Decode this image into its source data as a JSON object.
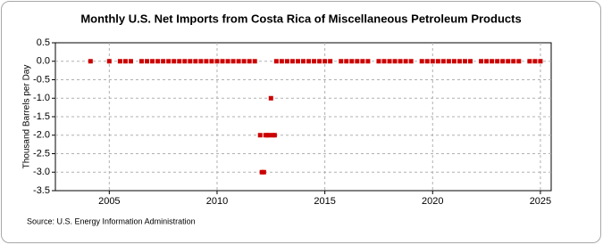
{
  "chart_data": {
    "type": "scatter",
    "title": "Monthly U.S. Net Imports from Costa Rica of Miscellaneous Petroleum Products",
    "y_label": "Thousand Barrels per Day",
    "source": "Source: U.S. Energy Information Administration",
    "color": "#cc0000",
    "grid": true,
    "xlim": [
      2002.5,
      2025.5
    ],
    "xticks": [
      2005,
      2010,
      2015,
      2020,
      2025
    ],
    "ylim": [
      -3.5,
      0.5
    ],
    "yticks": [
      0.5,
      {
        "value": 0,
        "label": "0.0"
      },
      -0.5,
      {
        "value": -1,
        "label": "-1.0"
      },
      -1.5,
      {
        "value": -2,
        "label": "-2.0"
      },
      -2.5,
      {
        "value": -3,
        "label": "-3.0"
      },
      -3.5
    ],
    "x": [
      2004.13,
      2005.0,
      2005.5,
      2005.75,
      2006.0,
      2006.5,
      2006.75,
      2007.0,
      2007.25,
      2007.5,
      2007.75,
      2008.0,
      2008.25,
      2008.5,
      2008.75,
      2009.0,
      2009.25,
      2009.5,
      2009.75,
      2010.0,
      2010.25,
      2010.5,
      2010.75,
      2011.0,
      2011.25,
      2011.5,
      2011.75,
      2012.0,
      2012.08,
      2012.17,
      2012.25,
      2012.33,
      2012.42,
      2012.5,
      2012.58,
      2012.67,
      2012.75,
      2013.0,
      2013.25,
      2013.5,
      2013.75,
      2014.0,
      2014.25,
      2014.5,
      2014.75,
      2015.0,
      2015.25,
      2015.75,
      2016.0,
      2016.25,
      2016.5,
      2016.75,
      2017.0,
      2017.5,
      2017.75,
      2018.0,
      2018.25,
      2018.5,
      2018.75,
      2019.0,
      2019.5,
      2019.75,
      2020.0,
      2020.25,
      2020.5,
      2020.75,
      2021.0,
      2021.25,
      2021.5,
      2021.75,
      2022.25,
      2022.5,
      2022.75,
      2023.0,
      2023.25,
      2023.5,
      2023.75,
      2024.0,
      2024.5,
      2024.75,
      2025.0
    ],
    "values": [
      0,
      0,
      0,
      0,
      0,
      0,
      0,
      0,
      0,
      0,
      0,
      0,
      0,
      0,
      0,
      0,
      0,
      0,
      0,
      0,
      0,
      0,
      0,
      0,
      0,
      0,
      0,
      -2,
      -3,
      -3,
      -2,
      -2,
      -2,
      -1,
      -2,
      -2,
      0,
      0,
      0,
      0,
      0,
      0,
      0,
      0,
      0,
      0,
      0,
      0,
      0,
      0,
      0,
      0,
      0,
      0,
      0,
      0,
      0,
      0,
      0,
      0,
      0,
      0,
      0,
      0,
      0,
      0,
      0,
      0,
      0,
      0,
      0,
      0,
      0,
      0,
      0,
      0,
      0,
      0,
      0,
      0,
      0
    ]
  }
}
